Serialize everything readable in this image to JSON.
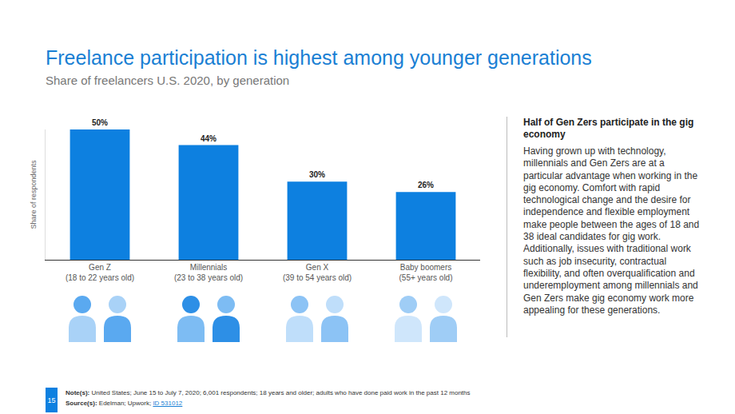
{
  "chart_data": {
    "type": "bar",
    "title": "Freelance participation is highest among younger generations",
    "subtitle": "Share of freelancers U.S. 2020, by generation",
    "y_label": "Share of respondents",
    "categories": [
      "Gen Z (18 to 22 years old)",
      "Millennials (23 to 38 years old)",
      "Gen X (39 to 54 years old)",
      "Baby boomers (55+ years old)"
    ],
    "values": [
      50,
      44,
      30,
      26
    ],
    "value_labels": [
      "50%",
      "44%",
      "30%",
      "26%"
    ],
    "color": "#0d80e0",
    "ylim": [
      0,
      50
    ],
    "data_labels": true,
    "tick_labels": "x",
    "grid": false
  },
  "sidebar": {
    "heading": "Half of Gen Zers participate in the gig economy",
    "text": "Having grown up with technology, millennials and Gen Zers are at a particular advantage when working in the gig economy. Comfort with rapid technological change and the desire for independence and flexible employment make people between the ages of 18 and 38 ideal candidates for gig work. Additionally, issues with traditional work such as job insecurity, contractual flexibility, and often overqualification and underemployment among millennials and Gen Zers make gig economy work more appealing for these generations."
  },
  "footer": {
    "page": "15",
    "note_label": "Note(s):",
    "note": "United States; June 15 to July 7, 2020; 6,001 respondents; 18 years and older; adults who have done paid work in the past 12 months",
    "source_label": "Source(s):",
    "source": "Edelman; Upwork;",
    "source_link": "ID 531012"
  }
}
